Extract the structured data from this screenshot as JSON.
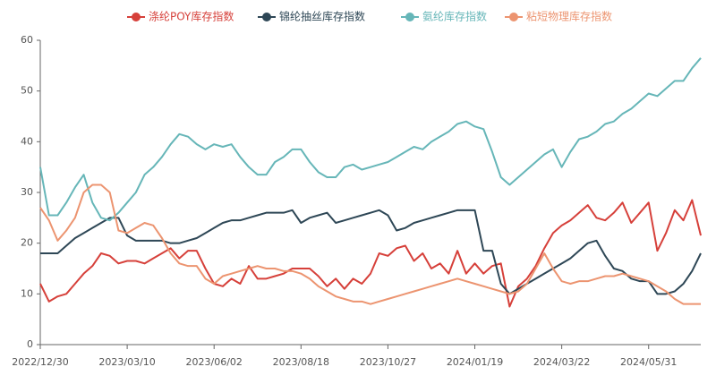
{
  "chart_data": {
    "type": "line",
    "categories": [
      "2022/12/30",
      null,
      null,
      null,
      null,
      null,
      null,
      null,
      null,
      null,
      "2023/03/10",
      null,
      null,
      null,
      null,
      null,
      null,
      null,
      null,
      null,
      "2023/06/02",
      null,
      null,
      null,
      null,
      null,
      null,
      null,
      null,
      null,
      "2023/08/18",
      null,
      null,
      null,
      null,
      null,
      null,
      null,
      null,
      null,
      "2023/10/27",
      null,
      null,
      null,
      null,
      null,
      null,
      null,
      null,
      null,
      "2024/01/19",
      null,
      null,
      null,
      null,
      null,
      null,
      null,
      null,
      null,
      "2024/03/22",
      null,
      null,
      null,
      null,
      null,
      null,
      null,
      null,
      null,
      "2024/05/31",
      null,
      null,
      null,
      null,
      null,
      null
    ],
    "series": [
      {
        "name": "涤纶POY库存指数",
        "color": "#d6403a",
        "values": [
          12,
          8.5,
          9.5,
          10,
          12,
          14,
          15.5,
          18,
          17.5,
          16,
          16.5,
          16.5,
          16,
          17,
          18,
          19,
          17,
          18.5,
          18.5,
          15,
          12,
          11.5,
          13,
          12,
          15.5,
          13,
          13,
          13.5,
          14,
          15,
          15,
          15,
          13.5,
          11.5,
          13,
          11,
          13,
          12,
          14,
          18,
          17.5,
          19,
          19.5,
          16.5,
          18,
          15,
          16,
          14,
          18.5,
          14,
          16,
          14,
          15.5,
          16,
          7.5,
          11.5,
          13,
          15.5,
          19,
          22,
          23.5,
          24.5,
          26,
          27.5,
          25,
          24.5,
          26,
          28,
          24,
          26,
          28,
          18.5,
          22,
          26.5,
          24.5,
          28.5,
          21.5
        ]
      },
      {
        "name": "锦纶抽丝库存指数",
        "color": "#2e4756",
        "values": [
          18,
          18,
          18,
          19.5,
          21,
          22,
          23,
          24,
          25,
          25,
          21.5,
          20.5,
          20.5,
          20.5,
          20.5,
          20,
          20,
          20.5,
          21,
          22,
          23,
          24,
          24.5,
          24.5,
          25,
          25.5,
          26,
          26,
          26,
          26.5,
          24,
          25,
          25.5,
          26,
          24,
          24.5,
          25,
          25.5,
          26,
          26.5,
          25.5,
          22.5,
          23,
          24,
          24.5,
          25,
          25.5,
          26,
          26.5,
          26.5,
          26.5,
          18.5,
          18.5,
          12,
          10,
          11,
          12,
          13,
          14,
          15,
          16,
          17,
          18.5,
          20,
          20.5,
          17.5,
          15,
          14.5,
          13,
          12.5,
          12.5,
          10,
          10,
          10.5,
          12,
          14.5,
          18
        ]
      },
      {
        "name": "氨纶库存指数",
        "color": "#66b6b8",
        "values": [
          35,
          25.5,
          25.5,
          28,
          31,
          33.5,
          28,
          25,
          24.5,
          26,
          28,
          30,
          33.5,
          35,
          37,
          39.5,
          41.5,
          41,
          39.5,
          38.5,
          39.5,
          39,
          39.5,
          37,
          35,
          33.5,
          33.5,
          36,
          37,
          38.5,
          38.5,
          36,
          34,
          33,
          33,
          35,
          35.5,
          34.5,
          35,
          35.5,
          36,
          37,
          38,
          39,
          38.5,
          40,
          41,
          42,
          43.5,
          44,
          43,
          42.5,
          38,
          33,
          31.5,
          33,
          34.5,
          36,
          37.5,
          38.5,
          35,
          38,
          40.5,
          41,
          42,
          43.5,
          44,
          45.5,
          46.5,
          48,
          49.5,
          49,
          50.5,
          52,
          52,
          54.5,
          56.5
        ]
      },
      {
        "name": "粘短物理库存指数",
        "color": "#ec9470",
        "values": [
          27,
          24.5,
          20.5,
          22.5,
          25,
          30,
          31.5,
          31.5,
          30,
          22.5,
          22,
          23,
          24,
          23.5,
          21,
          18,
          16,
          15.5,
          15.5,
          13,
          12,
          13.5,
          14,
          14.5,
          15,
          15.5,
          15,
          15,
          14.5,
          14.5,
          14,
          13,
          11.5,
          10.5,
          9.5,
          9,
          8.5,
          8.5,
          8,
          8.5,
          9,
          9.5,
          10,
          10.5,
          11,
          11.5,
          12,
          12.5,
          13,
          12.5,
          12,
          11.5,
          11,
          10.5,
          10,
          10.5,
          12,
          15,
          18,
          15,
          12.5,
          12,
          12.5,
          12.5,
          13,
          13.5,
          13.5,
          14,
          13.5,
          13,
          12.5,
          11.5,
          10.5,
          9,
          8,
          8,
          8
        ]
      }
    ],
    "ylim": [
      0,
      60
    ],
    "yticks": [
      0,
      10,
      20,
      30,
      40,
      50,
      60
    ],
    "grid": false
  }
}
